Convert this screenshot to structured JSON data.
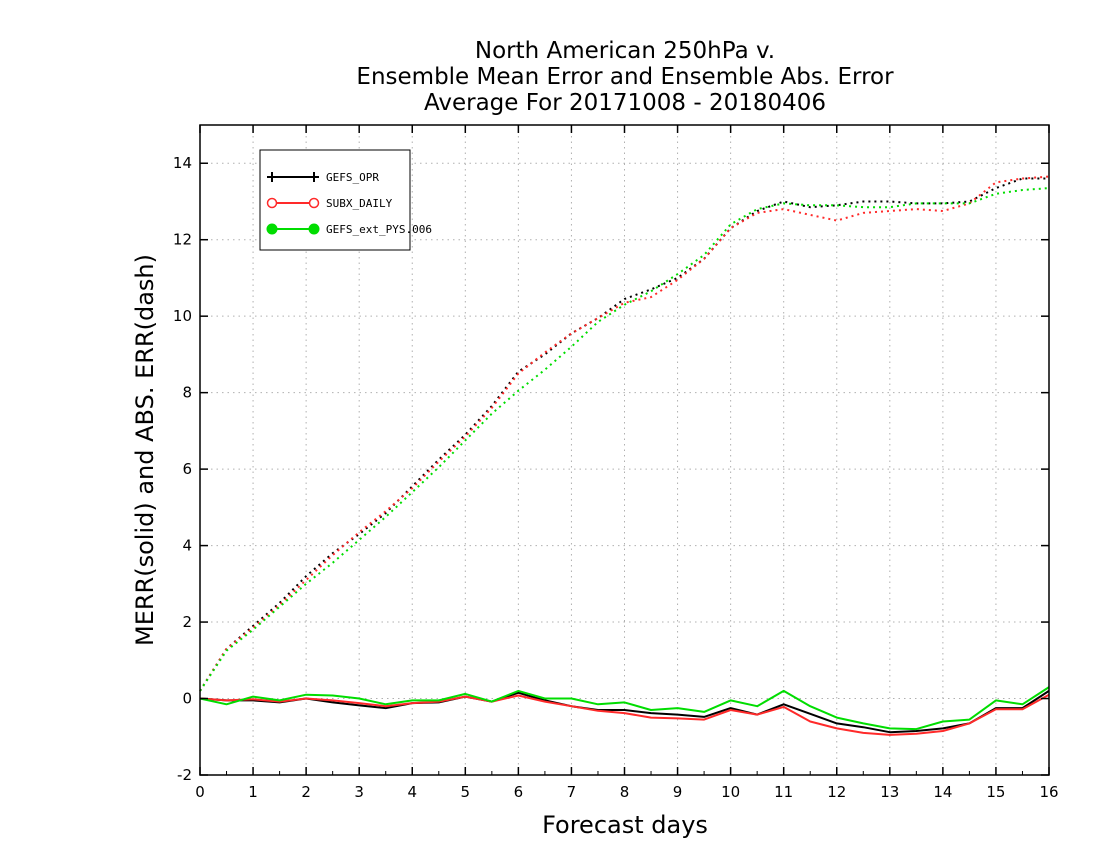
{
  "chart_data": {
    "type": "line",
    "title_lines": [
      "North American 250hPa v.",
      "Ensemble Mean Error and Ensemble Abs. Error",
      "Average For 20171008 - 20180406"
    ],
    "xlabel": "Forecast days",
    "ylabel": "MERR(solid) and ABS. ERR(dash)",
    "xlim": [
      0,
      16
    ],
    "ylim": [
      -2,
      15
    ],
    "x_ticks": [
      "0",
      "1",
      "2",
      "3",
      "4",
      "5",
      "6",
      "7",
      "8",
      "9",
      "10",
      "11",
      "12",
      "13",
      "14",
      "15",
      "16"
    ],
    "y_ticks": [
      "-2",
      "0",
      "2",
      "4",
      "6",
      "8",
      "10",
      "12",
      "14"
    ],
    "grid": true,
    "legend_position": "top-left",
    "x": [
      0,
      0.5,
      1,
      1.5,
      2,
      2.5,
      3,
      3.5,
      4,
      4.5,
      5,
      5.5,
      6,
      6.5,
      7,
      7.5,
      8,
      8.5,
      9,
      9.5,
      10,
      10.5,
      11,
      11.5,
      12,
      12.5,
      13,
      13.5,
      14,
      14.5,
      15,
      15.5,
      16
    ],
    "series": [
      {
        "name": "GEFS_OPR",
        "color": "#000000",
        "marker": "plus",
        "mean_error": [
          0.0,
          -0.05,
          -0.05,
          -0.1,
          0.0,
          -0.1,
          -0.18,
          -0.25,
          -0.12,
          -0.1,
          0.05,
          -0.08,
          0.15,
          -0.05,
          -0.2,
          -0.3,
          -0.3,
          -0.38,
          -0.42,
          -0.48,
          -0.25,
          -0.42,
          -0.15,
          -0.4,
          -0.65,
          -0.75,
          -0.88,
          -0.85,
          -0.78,
          -0.65,
          -0.25,
          -0.25,
          0.2
        ],
        "abs_error": [
          0.2,
          1.3,
          1.9,
          2.5,
          3.2,
          3.8,
          4.3,
          4.85,
          5.55,
          6.25,
          6.9,
          7.65,
          8.55,
          9.0,
          9.55,
          9.95,
          10.45,
          10.7,
          11.0,
          11.5,
          12.3,
          12.75,
          13.0,
          12.85,
          12.9,
          13.0,
          13.0,
          12.95,
          12.95,
          13.0,
          13.35,
          13.6,
          13.6
        ]
      },
      {
        "name": "SUBX_DAILY",
        "color": "#ff2a2a",
        "marker": "open-circle",
        "mean_error": [
          0.0,
          -0.05,
          -0.02,
          -0.08,
          0.0,
          -0.05,
          -0.12,
          -0.2,
          -0.12,
          -0.08,
          0.05,
          -0.08,
          0.08,
          -0.08,
          -0.2,
          -0.32,
          -0.38,
          -0.5,
          -0.52,
          -0.55,
          -0.3,
          -0.42,
          -0.22,
          -0.6,
          -0.78,
          -0.9,
          -0.95,
          -0.92,
          -0.85,
          -0.65,
          -0.28,
          -0.28,
          0.1
        ],
        "abs_error": [
          0.2,
          1.3,
          1.85,
          2.45,
          3.1,
          3.75,
          4.35,
          4.9,
          5.5,
          6.2,
          6.85,
          7.6,
          8.5,
          9.05,
          9.55,
          9.95,
          10.35,
          10.5,
          10.95,
          11.5,
          12.3,
          12.7,
          12.8,
          12.65,
          12.5,
          12.7,
          12.75,
          12.8,
          12.75,
          12.95,
          13.5,
          13.6,
          13.65
        ]
      },
      {
        "name": "GEFS_ext_PYS.006",
        "color": "#00dd00",
        "marker": "filled-circle",
        "mean_error": [
          0.0,
          -0.15,
          0.05,
          -0.05,
          0.1,
          0.08,
          0.0,
          -0.15,
          -0.05,
          -0.05,
          0.12,
          -0.08,
          0.2,
          0.0,
          0.0,
          -0.15,
          -0.1,
          -0.3,
          -0.25,
          -0.35,
          -0.05,
          -0.2,
          0.2,
          -0.2,
          -0.5,
          -0.65,
          -0.78,
          -0.8,
          -0.6,
          -0.55,
          -0.05,
          -0.15,
          0.3
        ],
        "abs_error": [
          0.2,
          1.25,
          1.8,
          2.4,
          3.0,
          3.55,
          4.15,
          4.75,
          5.4,
          6.05,
          6.75,
          7.45,
          8.05,
          8.6,
          9.2,
          9.85,
          10.3,
          10.65,
          11.1,
          11.6,
          12.4,
          12.8,
          12.95,
          12.9,
          12.9,
          12.85,
          12.85,
          12.95,
          12.95,
          12.95,
          13.2,
          13.3,
          13.35
        ]
      }
    ]
  }
}
